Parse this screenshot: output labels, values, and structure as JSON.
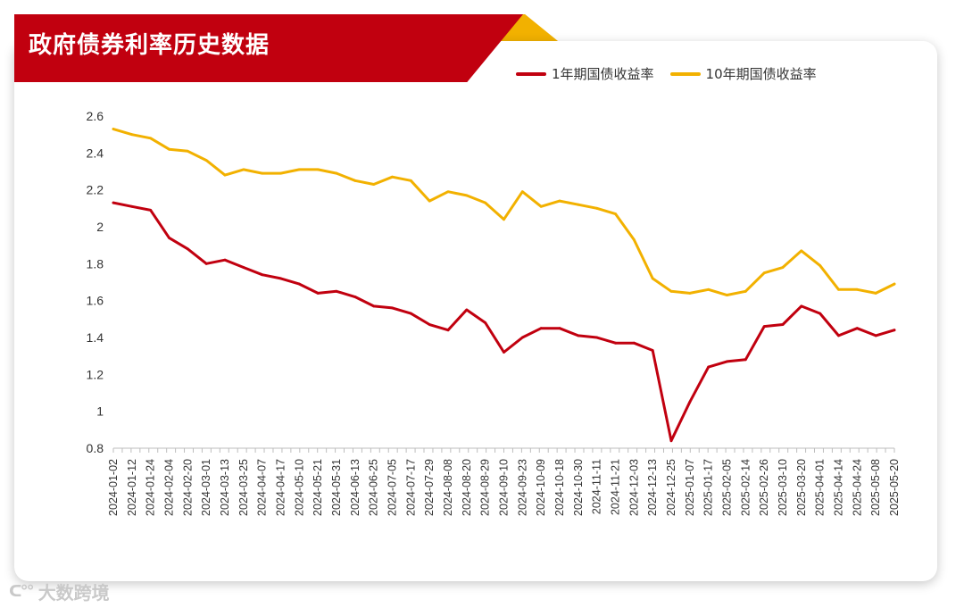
{
  "title": "政府债券利率历史数据",
  "watermark": {
    "text": "大数跨境",
    "icon": "logo-mark"
  },
  "colors": {
    "banner": "#c1000f",
    "accent": "#f2b100",
    "series1": "#c1000f",
    "series2": "#f2b100"
  },
  "chart_data": {
    "type": "line",
    "xlabel": "",
    "ylabel": "",
    "ylim": [
      0.8,
      2.6
    ],
    "yticks": [
      "0.8",
      "1",
      "1.2",
      "1.4",
      "1.6",
      "1.8",
      "2",
      "2.2",
      "2.4",
      "2.6"
    ],
    "grid": false,
    "legend_position": "top-right",
    "xtick_labels": [
      "2024-01-02",
      "2024-01-12",
      "2024-01-24",
      "2024-02-04",
      "2024-02-20",
      "2024-03-01",
      "2024-03-13",
      "2024-03-25",
      "2024-04-07",
      "2024-04-17",
      "2024-05-10",
      "2024-05-21",
      "2024-05-31",
      "2024-06-13",
      "2024-06-25",
      "2024-07-05",
      "2024-07-17",
      "2024-07-29",
      "2024-08-08",
      "2024-08-20",
      "2024-08-29",
      "2024-09-10",
      "2024-09-23",
      "2024-10-09",
      "2024-10-18",
      "2024-10-30",
      "2024-11-11",
      "2024-11-21",
      "2024-12-03",
      "2024-12-13",
      "2024-12-25",
      "2025-01-07",
      "2025-01-17",
      "2025-02-05",
      "2025-02-14",
      "2025-02-26",
      "2025-03-10",
      "2025-03-20",
      "2025-04-01",
      "2025-04-14",
      "2025-04-24",
      "2025-05-08",
      "2025-05-20"
    ],
    "x": [
      "2024-01-02",
      "2024-01-12",
      "2024-01-24",
      "2024-02-04",
      "2024-02-20",
      "2024-03-01",
      "2024-03-13",
      "2024-03-25",
      "2024-04-07",
      "2024-04-17",
      "2024-05-10",
      "2024-05-21",
      "2024-05-31",
      "2024-06-13",
      "2024-06-25",
      "2024-07-05",
      "2024-07-17",
      "2024-07-29",
      "2024-08-08",
      "2024-08-20",
      "2024-08-29",
      "2024-09-10",
      "2024-09-23",
      "2024-10-09",
      "2024-10-18",
      "2024-10-30",
      "2024-11-11",
      "2024-11-21",
      "2024-12-03",
      "2024-12-13",
      "2024-12-25",
      "2025-01-07",
      "2025-01-17",
      "2025-02-05",
      "2025-02-14",
      "2025-02-26",
      "2025-03-10",
      "2025-03-20",
      "2025-04-01",
      "2025-04-14",
      "2025-04-24",
      "2025-05-08",
      "2025-05-20"
    ],
    "series": [
      {
        "name": "1年期国债收益率",
        "color": "#c1000f",
        "values": [
          2.13,
          2.11,
          2.09,
          1.94,
          1.88,
          1.8,
          1.82,
          1.78,
          1.74,
          1.72,
          1.69,
          1.64,
          1.65,
          1.62,
          1.57,
          1.56,
          1.53,
          1.47,
          1.44,
          1.55,
          1.48,
          1.32,
          1.4,
          1.45,
          1.45,
          1.41,
          1.4,
          1.37,
          1.37,
          1.33,
          0.84,
          1.05,
          1.24,
          1.27,
          1.28,
          1.46,
          1.47,
          1.57,
          1.53,
          1.41,
          1.45,
          1.41,
          1.44
        ]
      },
      {
        "name": "10年期国债收益率",
        "color": "#f2b100",
        "values": [
          2.53,
          2.5,
          2.48,
          2.42,
          2.41,
          2.36,
          2.28,
          2.31,
          2.29,
          2.29,
          2.31,
          2.31,
          2.29,
          2.25,
          2.23,
          2.27,
          2.25,
          2.14,
          2.19,
          2.17,
          2.13,
          2.04,
          2.19,
          2.11,
          2.14,
          2.12,
          2.1,
          2.07,
          1.93,
          1.72,
          1.65,
          1.64,
          1.66,
          1.63,
          1.65,
          1.75,
          1.78,
          1.87,
          1.79,
          1.66,
          1.66,
          1.64,
          1.69
        ]
      }
    ]
  }
}
